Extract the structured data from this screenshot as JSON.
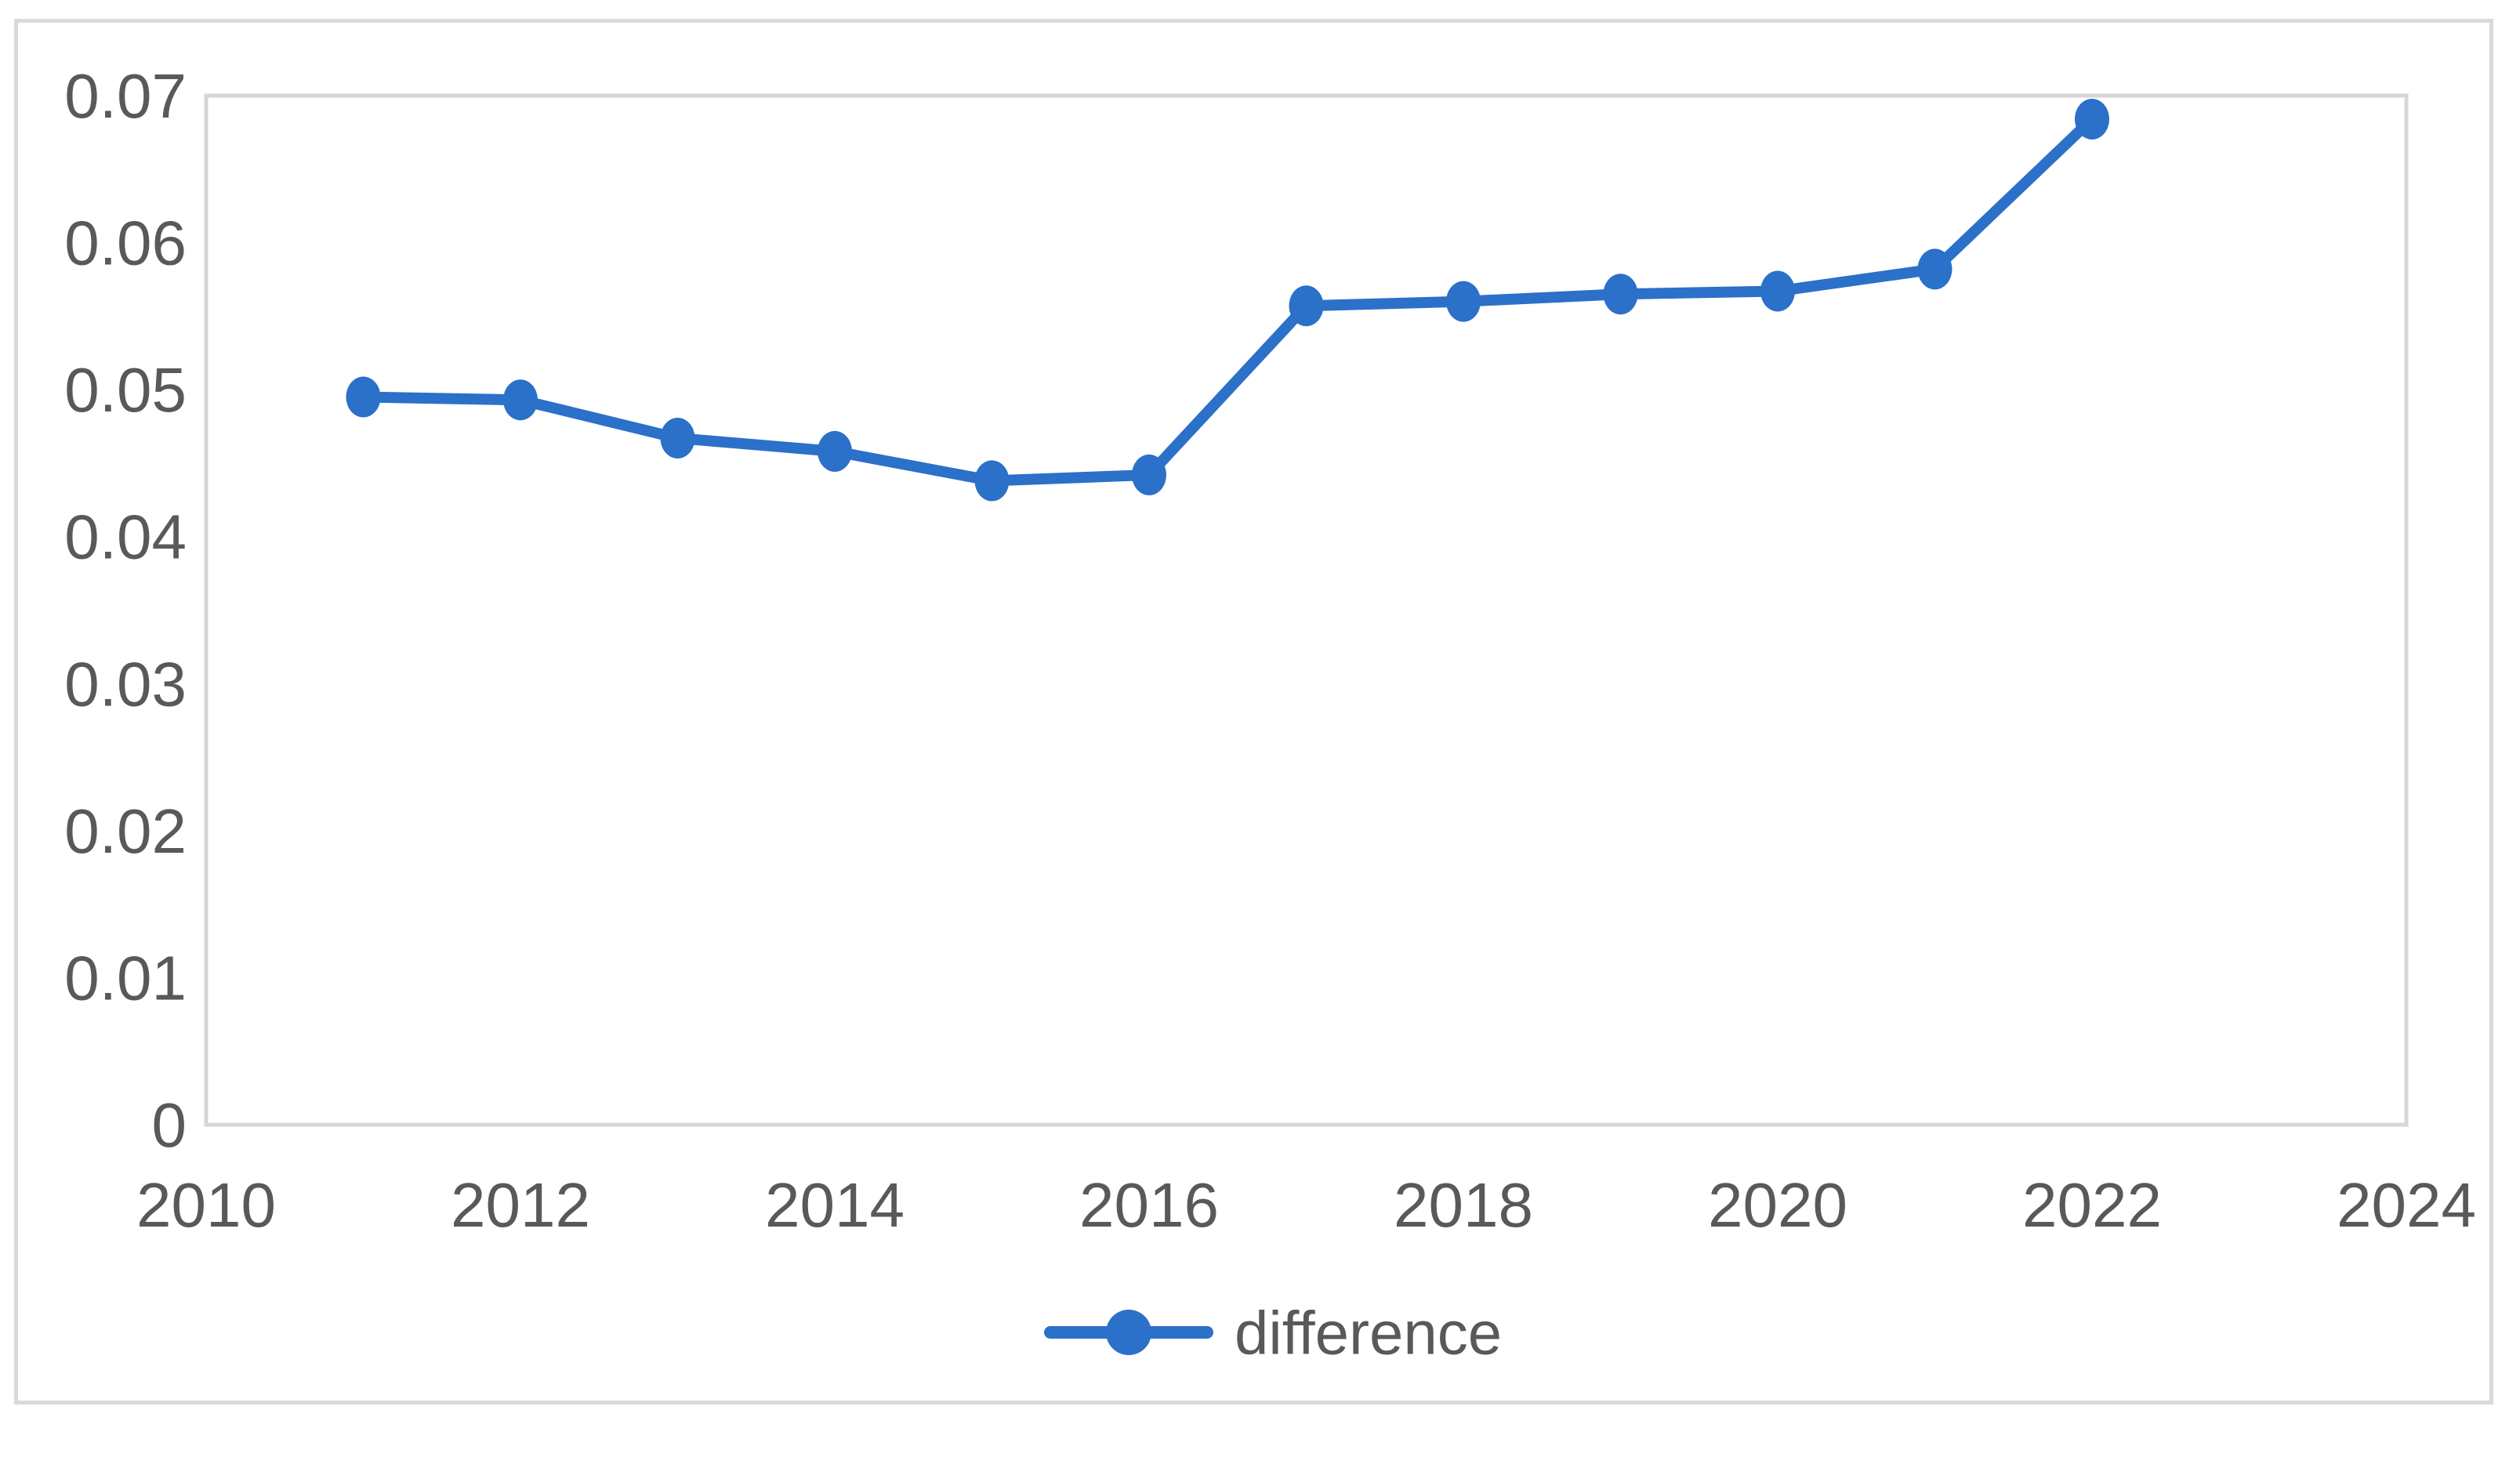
{
  "chart_data": {
    "type": "line",
    "title": "",
    "xlabel": "",
    "ylabel": "",
    "xlim": [
      2010,
      2024
    ],
    "ylim": [
      0,
      0.07
    ],
    "grid": "off",
    "legend_position": "bottom-center",
    "x_ticks": [
      {
        "label": "2010",
        "value": 2010
      },
      {
        "label": "2012",
        "value": 2012
      },
      {
        "label": "2014",
        "value": 2014
      },
      {
        "label": "2016",
        "value": 2016
      },
      {
        "label": "2018",
        "value": 2018
      },
      {
        "label": "2020",
        "value": 2020
      },
      {
        "label": "2022",
        "value": 2022
      },
      {
        "label": "2024",
        "value": 2024
      }
    ],
    "y_ticks": [
      {
        "label": "0",
        "value": 0
      },
      {
        "label": "0.01",
        "value": 0.01
      },
      {
        "label": "0.02",
        "value": 0.02
      },
      {
        "label": "0.03",
        "value": 0.03
      },
      {
        "label": "0.04",
        "value": 0.04
      },
      {
        "label": "0.05",
        "value": 0.05
      },
      {
        "label": "0.06",
        "value": 0.06
      },
      {
        "label": "0.07",
        "value": 0.07
      }
    ],
    "x": [
      2011,
      2012,
      2013,
      2014,
      2015,
      2016,
      2017,
      2018,
      2019,
      2020,
      2021,
      2022
    ],
    "series": [
      {
        "name": "difference",
        "values": [
          0.0495,
          0.0493,
          0.0467,
          0.0458,
          0.0438,
          0.0442,
          0.0557,
          0.056,
          0.0565,
          0.0567,
          0.0582,
          0.0684
        ]
      }
    ],
    "colors": {
      "series": "#2B70C9",
      "plot_border": "#d6d6d6",
      "outer_border": "#d9d9d9",
      "tick_text": "#595959",
      "background": "#ffffff"
    }
  }
}
